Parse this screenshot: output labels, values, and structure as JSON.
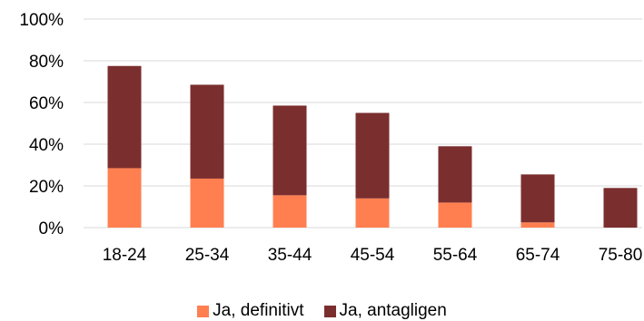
{
  "chart_data": {
    "type": "bar",
    "stacked": true,
    "categories": [
      "18-24",
      "25-34",
      "35-44",
      "45-54",
      "55-64",
      "65-74",
      "75-80"
    ],
    "series": [
      {
        "name": "Ja, definitivt",
        "color": "#FF7F50",
        "values": [
          28.5,
          23.5,
          15.5,
          14,
          12,
          2.5,
          0
        ]
      },
      {
        "name": "Ja, antagligen",
        "color": "#7B2E2E",
        "values": [
          49,
          45,
          43,
          41,
          27,
          23,
          19
        ]
      }
    ],
    "ylim": [
      0,
      100
    ],
    "yticks": [
      "0%",
      "20%",
      "40%",
      "60%",
      "80%",
      "100%"
    ],
    "grid": true,
    "legend": "bottom"
  }
}
